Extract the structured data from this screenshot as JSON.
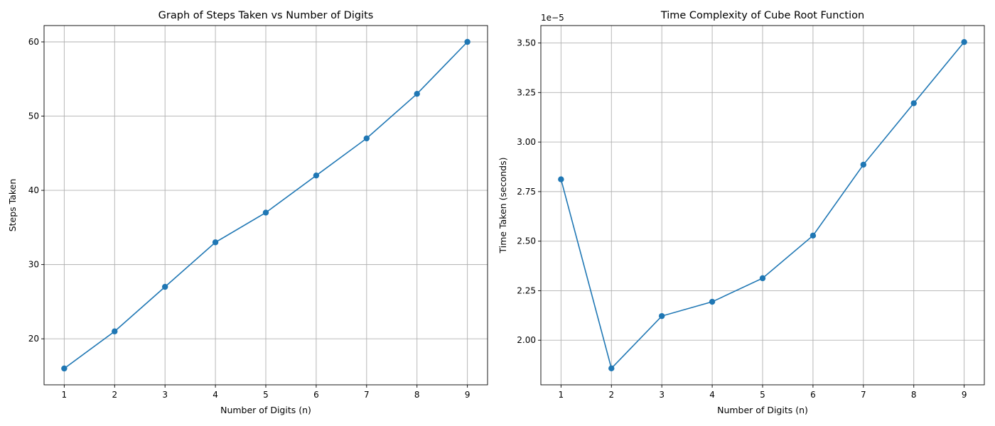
{
  "colors": {
    "series": "#1f77b4",
    "grid": "#b0b0b0",
    "background": "#ffffff"
  },
  "chart_data": [
    {
      "type": "line",
      "title": "Graph of Steps Taken vs Number of Digits",
      "xlabel": "Number of Digits (n)",
      "ylabel": "Steps Taken",
      "x": [
        1,
        2,
        3,
        4,
        5,
        6,
        7,
        8,
        9
      ],
      "series": [
        {
          "values": [
            16,
            21,
            27,
            33,
            37,
            42,
            47,
            53,
            60
          ],
          "marker": "circle"
        }
      ],
      "xticks": [
        1,
        2,
        3,
        4,
        5,
        6,
        7,
        8,
        9
      ],
      "yticks": [
        20,
        30,
        40,
        50,
        60
      ],
      "ytick_labels": [
        "20",
        "30",
        "40",
        "50",
        "60"
      ],
      "xlim": [
        0.6,
        9.4
      ],
      "ylim": [
        13.8,
        62.2
      ],
      "offset_text": "",
      "grid": true
    },
    {
      "type": "line",
      "title": "Time Complexity of Cube Root Function",
      "xlabel": "Number of Digits (n)",
      "ylabel": "Time Taken (seconds)",
      "x": [
        1,
        2,
        3,
        4,
        5,
        6,
        7,
        8,
        9
      ],
      "series": [
        {
          "values": [
            2.812,
            1.858,
            2.122,
            2.194,
            2.313,
            2.528,
            2.886,
            3.196,
            3.505
          ],
          "marker": "circle"
        }
      ],
      "xticks": [
        1,
        2,
        3,
        4,
        5,
        6,
        7,
        8,
        9
      ],
      "yticks": [
        2.0,
        2.25,
        2.5,
        2.75,
        3.0,
        3.25,
        3.5
      ],
      "ytick_labels": [
        "2.00",
        "2.25",
        "2.50",
        "2.75",
        "3.00",
        "3.25",
        "3.50"
      ],
      "xlim": [
        0.6,
        9.4
      ],
      "ylim": [
        1.775,
        3.588
      ],
      "offset_text": "1e−5",
      "grid": true
    }
  ]
}
